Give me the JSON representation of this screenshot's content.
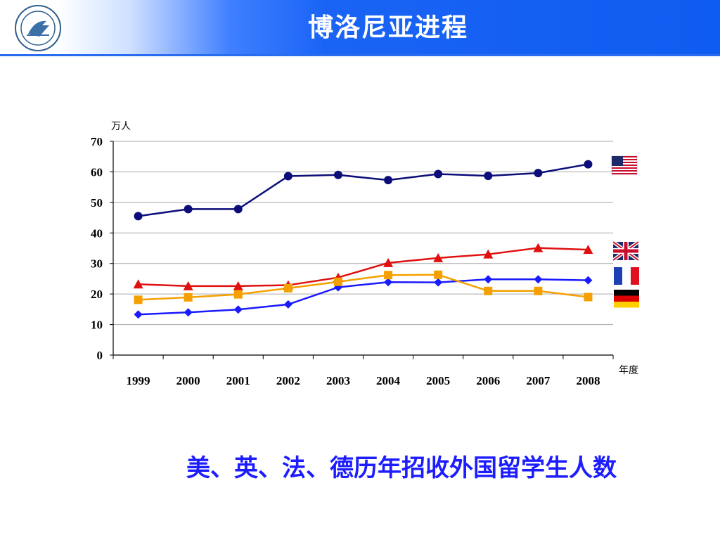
{
  "header": {
    "title": "博洛尼亚进程"
  },
  "caption": "美、英、法、德历年招收外国留学生人数",
  "colors": {
    "usa": "#0d0d7a",
    "uk": "#e01010",
    "france": "#1a1aff",
    "germany": "#f5a000",
    "header_blue": "#0f5cf0",
    "caption": "#1c1cff"
  },
  "chart_data": {
    "type": "line",
    "ylabel": "万人",
    "xlabel": "年度",
    "ylim": [
      0,
      70
    ],
    "yticks": [
      0,
      10,
      20,
      30,
      40,
      50,
      60,
      70
    ],
    "categories": [
      "1999",
      "2000",
      "2001",
      "2002",
      "2003",
      "2004",
      "2005",
      "2006",
      "2007",
      "2008"
    ],
    "grid": "horizontal",
    "legend": "flag icons at right end of each series",
    "series": [
      {
        "key": "usa",
        "color": "#0d0d7a",
        "marker": "circle",
        "flag": "usa-flag-icon",
        "values": [
          45.5,
          47.8,
          47.8,
          58.6,
          59.0,
          57.3,
          59.3,
          58.7,
          59.6,
          62.5
        ]
      },
      {
        "key": "uk",
        "color": "#e01010",
        "marker": "triangle",
        "flag": "uk-flag-icon",
        "values": [
          23.2,
          22.6,
          22.6,
          22.9,
          25.4,
          30.2,
          31.8,
          33.0,
          35.1,
          34.5
        ]
      },
      {
        "key": "france",
        "color": "#1a1aff",
        "marker": "diamond",
        "flag": "france-flag-icon",
        "values": [
          13.3,
          14.0,
          14.9,
          16.6,
          22.2,
          23.9,
          23.8,
          24.8,
          24.8,
          24.5
        ]
      },
      {
        "key": "germany",
        "color": "#f5a000",
        "marker": "square",
        "flag": "germany-flag-icon",
        "values": [
          18.1,
          18.9,
          19.9,
          21.9,
          24.0,
          26.2,
          26.3,
          21.0,
          21.0,
          19.0
        ]
      }
    ]
  }
}
